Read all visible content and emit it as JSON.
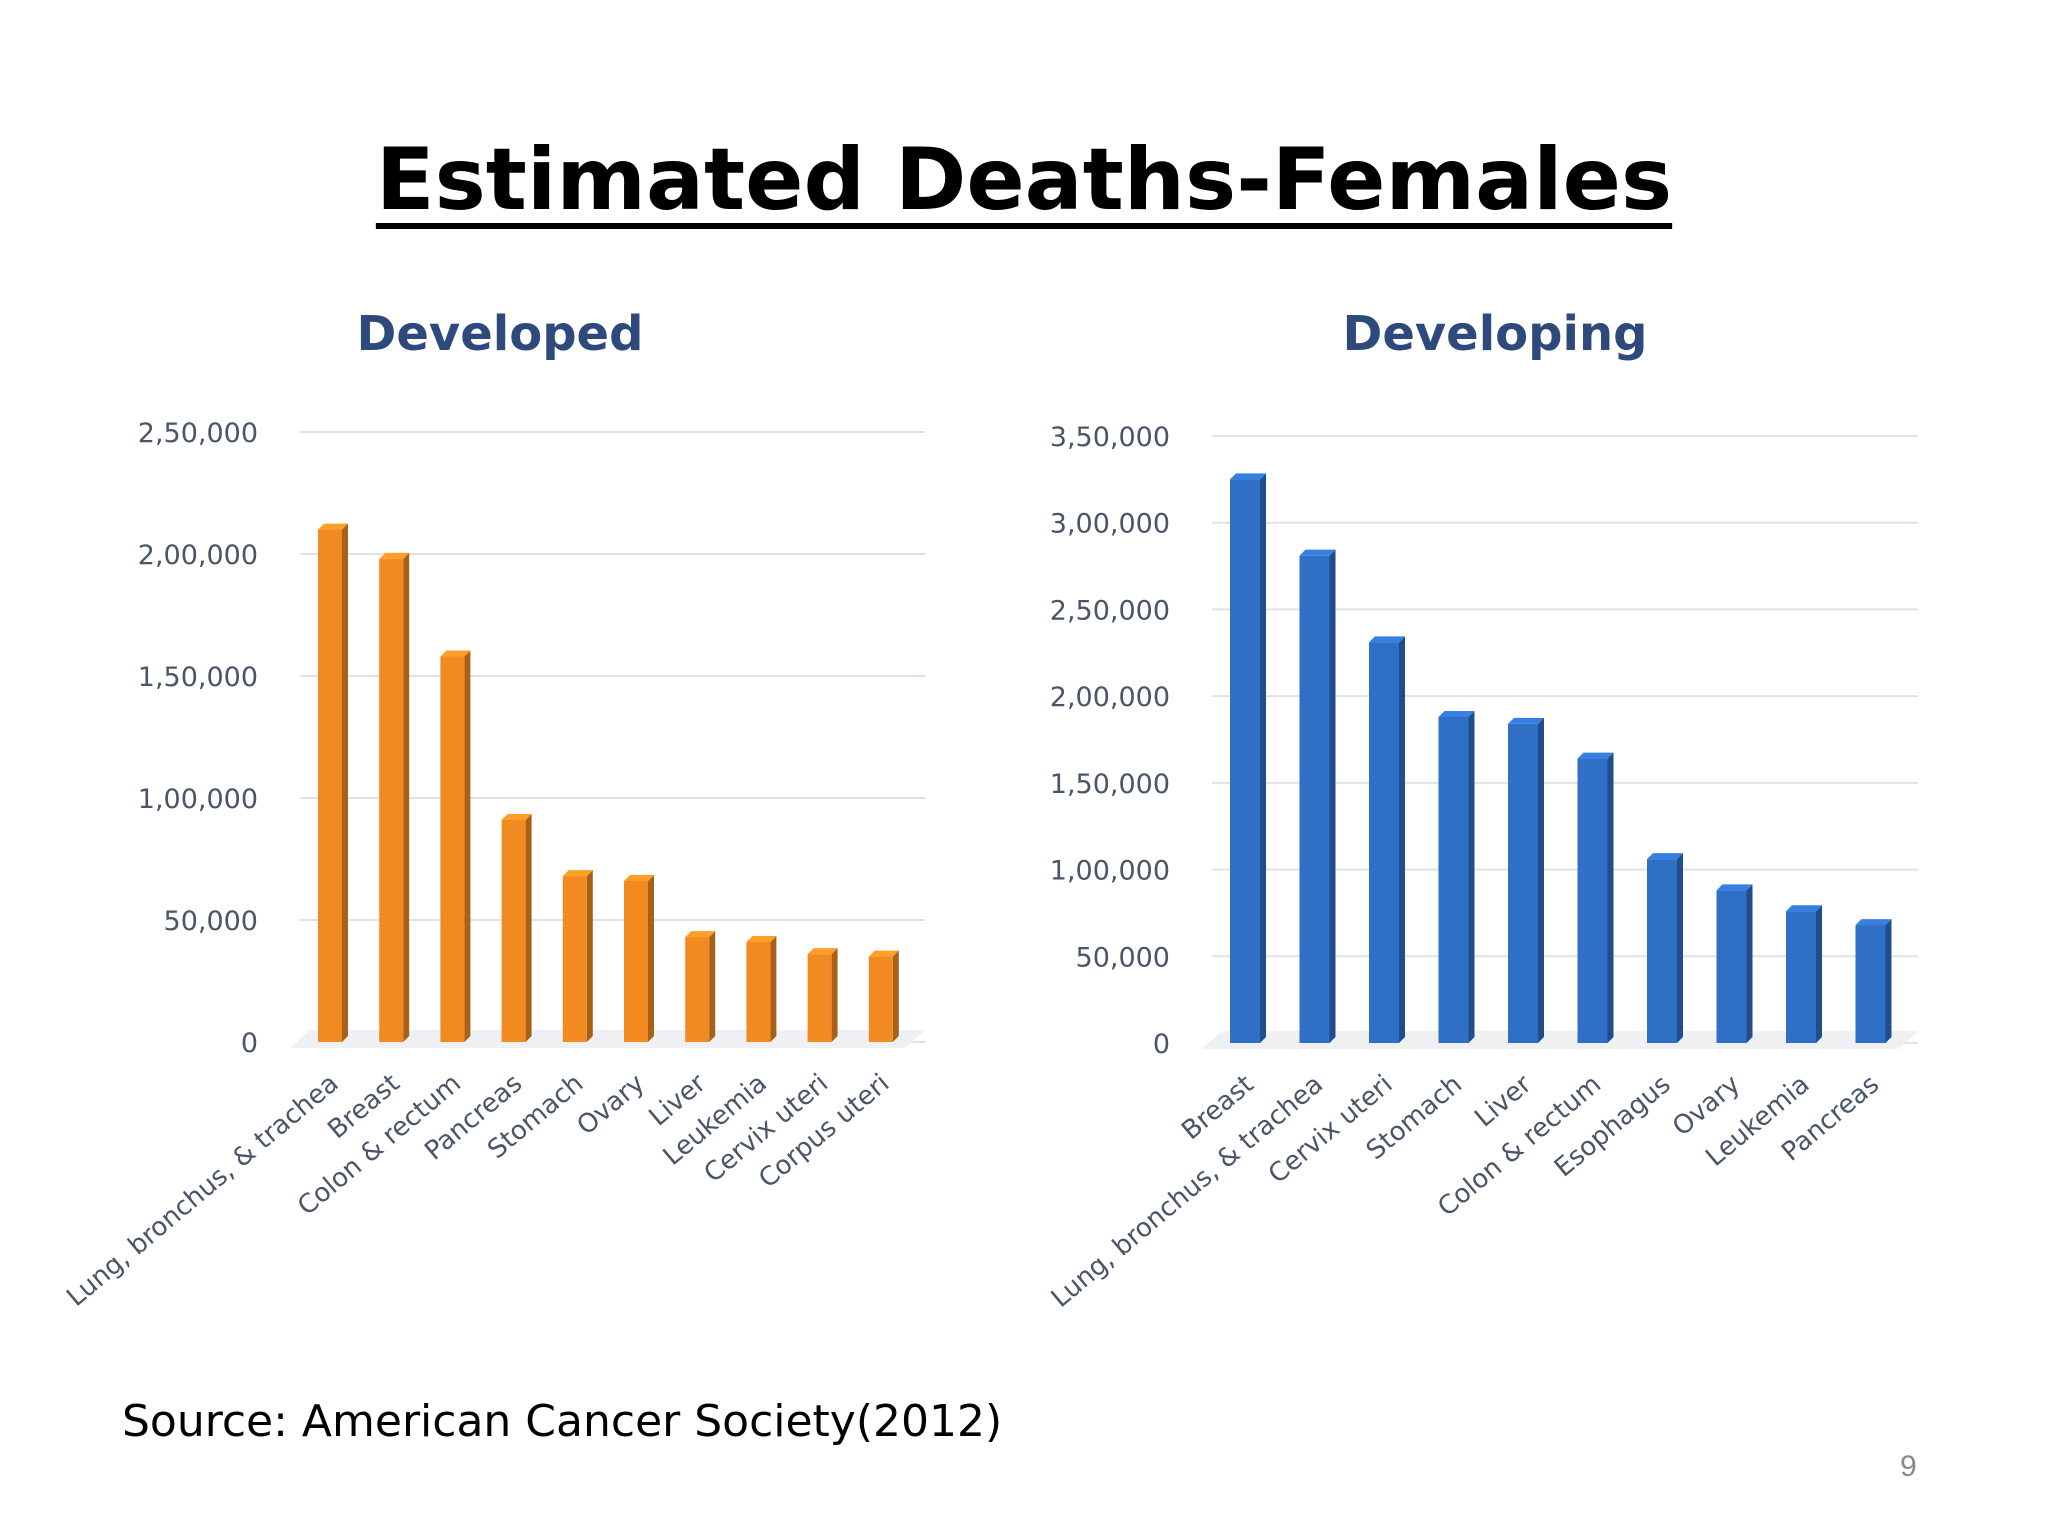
{
  "slide": {
    "title": "Estimated Deaths-Females",
    "source": "Source: American Cancer Society(2012)",
    "page_number": "9"
  },
  "colors": {
    "developed_bar": "#f28a22",
    "developing_bar": "#2f6fc6",
    "chart_title": "#2e4a7d",
    "tick_text": "#4a5568",
    "grid": "#dfe3e8"
  },
  "chart_data": [
    {
      "type": "bar",
      "title": "Developed",
      "categories": [
        "Lung, bronchus, & trachea",
        "Breast",
        "Colon & rectum",
        "Pancreas",
        "Stomach",
        "Ovary",
        "Liver",
        "Leukemia",
        "Cervix uteri",
        "Corpus uteri"
      ],
      "values": [
        210000,
        198000,
        158000,
        91000,
        68000,
        66000,
        43000,
        41000,
        36000,
        35000
      ],
      "ylim": [
        0,
        250000
      ],
      "yticks": [
        0,
        50000,
        100000,
        150000,
        200000,
        250000
      ],
      "ytick_labels": [
        "0",
        "50,000",
        "1,00,000",
        "1,50,000",
        "2,00,000",
        "2,50,000"
      ],
      "grid": true,
      "xlabel": "",
      "ylabel": ""
    },
    {
      "type": "bar",
      "title": "Developing",
      "categories": [
        "Breast",
        "Lung, bronchus, & trachea",
        "Cervix uteri",
        "Stomach",
        "Liver",
        "Colon & rectum",
        "Esophagus",
        "Ovary",
        "Leukemia",
        "Pancreas"
      ],
      "values": [
        325000,
        281000,
        231000,
        188000,
        184000,
        164000,
        106000,
        88000,
        76000,
        68000
      ],
      "ylim": [
        0,
        350000
      ],
      "yticks": [
        0,
        50000,
        100000,
        150000,
        200000,
        250000,
        300000,
        350000
      ],
      "ytick_labels": [
        "0",
        "50,000",
        "1,00,000",
        "1,50,000",
        "2,00,000",
        "2,50,000",
        "3,00,000",
        "3,50,000"
      ],
      "grid": true,
      "xlabel": "",
      "ylabel": ""
    }
  ]
}
